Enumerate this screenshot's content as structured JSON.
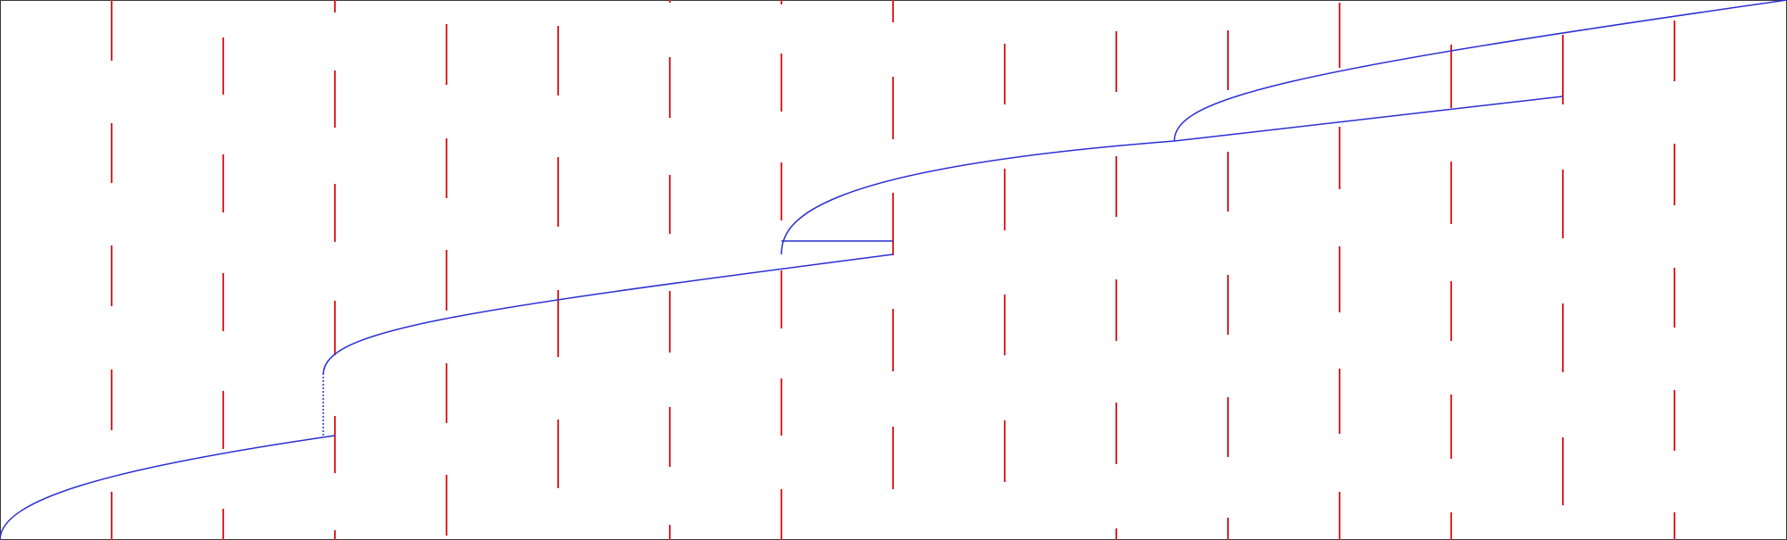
{
  "colors": {
    "background": "#ffffff",
    "frame": "#3a3a3a",
    "segment": "#e0262a",
    "path": "#2a2fd4"
  }
}
